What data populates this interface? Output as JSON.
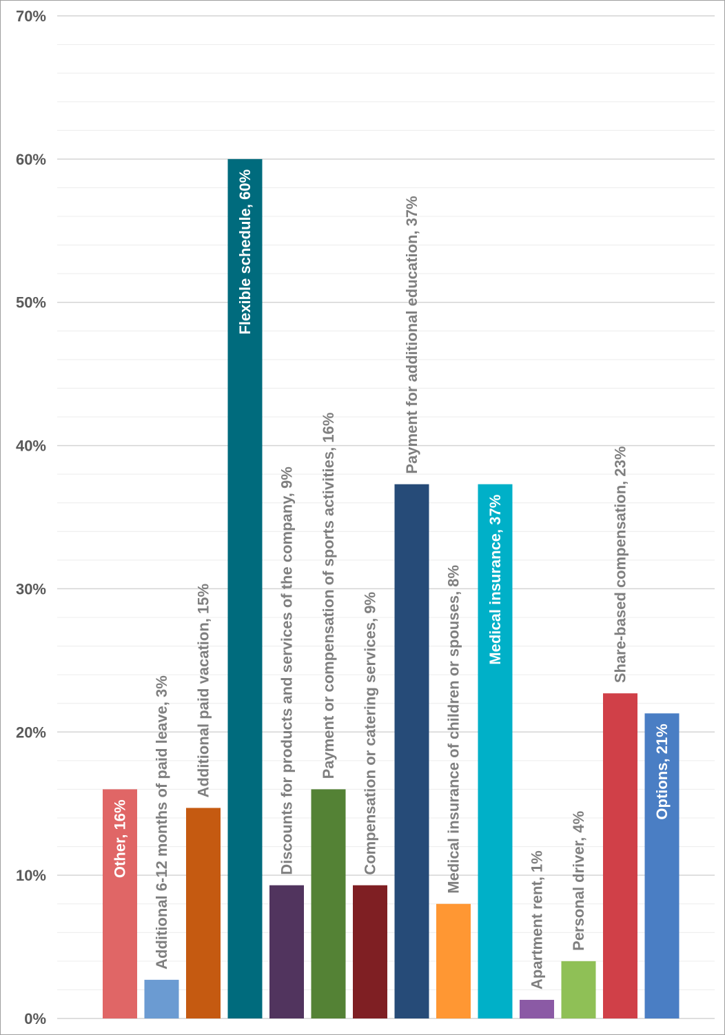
{
  "chart_data": {
    "type": "bar",
    "title": "",
    "xlabel": "",
    "ylabel": "",
    "ylim": [
      0,
      70
    ],
    "y_ticks": [
      "0%",
      "10%",
      "20%",
      "30%",
      "40%",
      "50%",
      "60%",
      "70%"
    ],
    "grid": true,
    "legend": "none",
    "label_colors": {
      "outside": "#7f7f7f",
      "inside": "#ffffff"
    },
    "bars": [
      {
        "label": "Other, 16%",
        "value": 16,
        "color": "#e06666",
        "label_position": "inside"
      },
      {
        "label": "Additional 6-12 months of paid leave, 3%",
        "value": 2.7,
        "color": "#6b9bd2",
        "label_position": "outside"
      },
      {
        "label": "Additional paid vacation, 15%",
        "value": 14.7,
        "color": "#c55a11",
        "label_position": "outside"
      },
      {
        "label": "Flexible schedule, 60%",
        "value": 60,
        "color": "#006b7d",
        "label_position": "inside"
      },
      {
        "label": "Discounts for products and services of the company, 9%",
        "value": 9.3,
        "color": "#51345e",
        "label_position": "outside"
      },
      {
        "label": "Payment or compensation of sports activities, 16%",
        "value": 16,
        "color": "#548235",
        "label_position": "outside"
      },
      {
        "label": "Compensation or catering services, 9%",
        "value": 9.3,
        "color": "#7f1f23",
        "label_position": "outside"
      },
      {
        "label": "Payment for additional education, 37%",
        "value": 37.3,
        "color": "#264b78",
        "label_position": "outside"
      },
      {
        "label": "Medical insurance of children or spouses, 8%",
        "value": 8,
        "color": "#ff9733",
        "label_position": "outside"
      },
      {
        "label": "Medical insurance, 37%",
        "value": 37.3,
        "color": "#00b0c8",
        "label_position": "inside"
      },
      {
        "label": "Apartment rent, 1%",
        "value": 1.3,
        "color": "#8b5aa5",
        "label_position": "outside"
      },
      {
        "label": "Personal driver, 4%",
        "value": 4,
        "color": "#8fc056",
        "label_position": "outside"
      },
      {
        "label": "Share-based compensation, 23%",
        "value": 22.7,
        "color": "#d04048",
        "label_position": "outside"
      },
      {
        "label": "Options, 21%",
        "value": 21.3,
        "color": "#4a7ec4",
        "label_position": "inside"
      }
    ]
  }
}
